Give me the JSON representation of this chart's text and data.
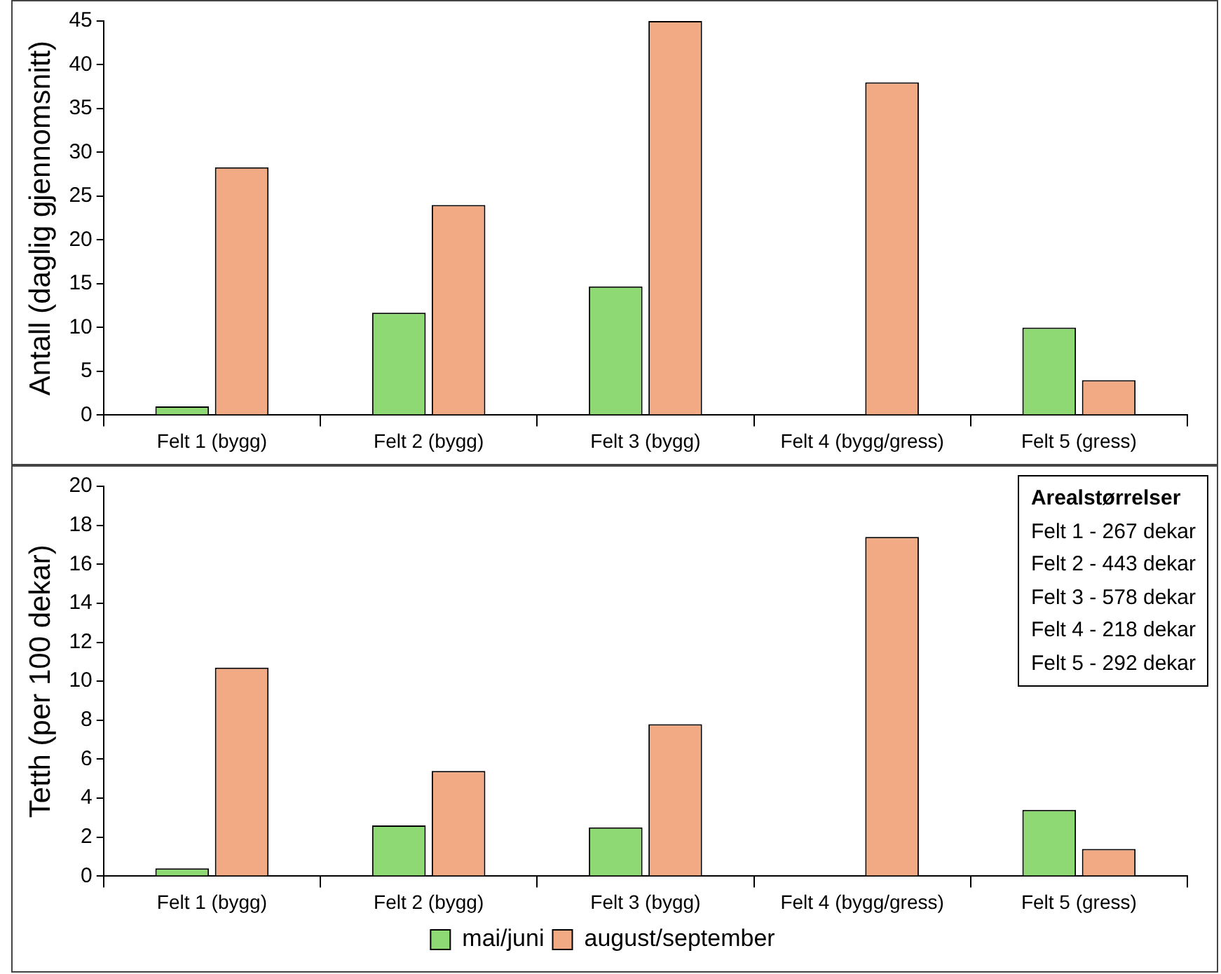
{
  "chart_data": [
    {
      "type": "bar",
      "ylabel": "Antall (daglig gjennomsnitt)",
      "categories": [
        "Felt 1 (bygg)",
        "Felt 2 (bygg)",
        "Felt 3 (bygg)",
        "Felt 4 (bygg/gress)",
        "Felt 5 (gress)"
      ],
      "series": [
        {
          "color": "#8ed973",
          "values": [
            1,
            11.7,
            14.7,
            0,
            10
          ]
        },
        {
          "color": "#f2aa84",
          "values": [
            28.3,
            24,
            45,
            38,
            4
          ]
        }
      ],
      "ylim": [
        0,
        45
      ],
      "yticks": [
        0,
        5,
        10,
        15,
        20,
        25,
        30,
        35,
        40,
        45
      ],
      "grid": false,
      "legend": false
    },
    {
      "type": "bar",
      "ylabel": "Tetth (per 100 dekar)",
      "categories": [
        "Felt 1 (bygg)",
        "Felt 2 (bygg)",
        "Felt 3 (bygg)",
        "Felt 4 (bygg/gress)",
        "Felt 5 (gress)"
      ],
      "series": [
        {
          "name": "mai/juni",
          "color": "#8ed973",
          "values": [
            0.4,
            2.6,
            2.5,
            0,
            3.4
          ]
        },
        {
          "name": "august/september",
          "color": "#f2aa84",
          "values": [
            10.7,
            5.4,
            7.8,
            17.4,
            1.4
          ]
        }
      ],
      "ylim": [
        0,
        20
      ],
      "yticks": [
        0,
        2,
        4,
        6,
        8,
        10,
        12,
        14,
        16,
        18,
        20
      ],
      "grid": false,
      "legend": "bottom",
      "annotations": [
        "Arealstørrelser",
        "Felt 1 - 267 dekar",
        "Felt 2 - 443 dekar",
        "Felt 3 - 578 dekar",
        "Felt 4 - 218 dekar",
        "Felt 5 - 292 dekar"
      ]
    }
  ]
}
